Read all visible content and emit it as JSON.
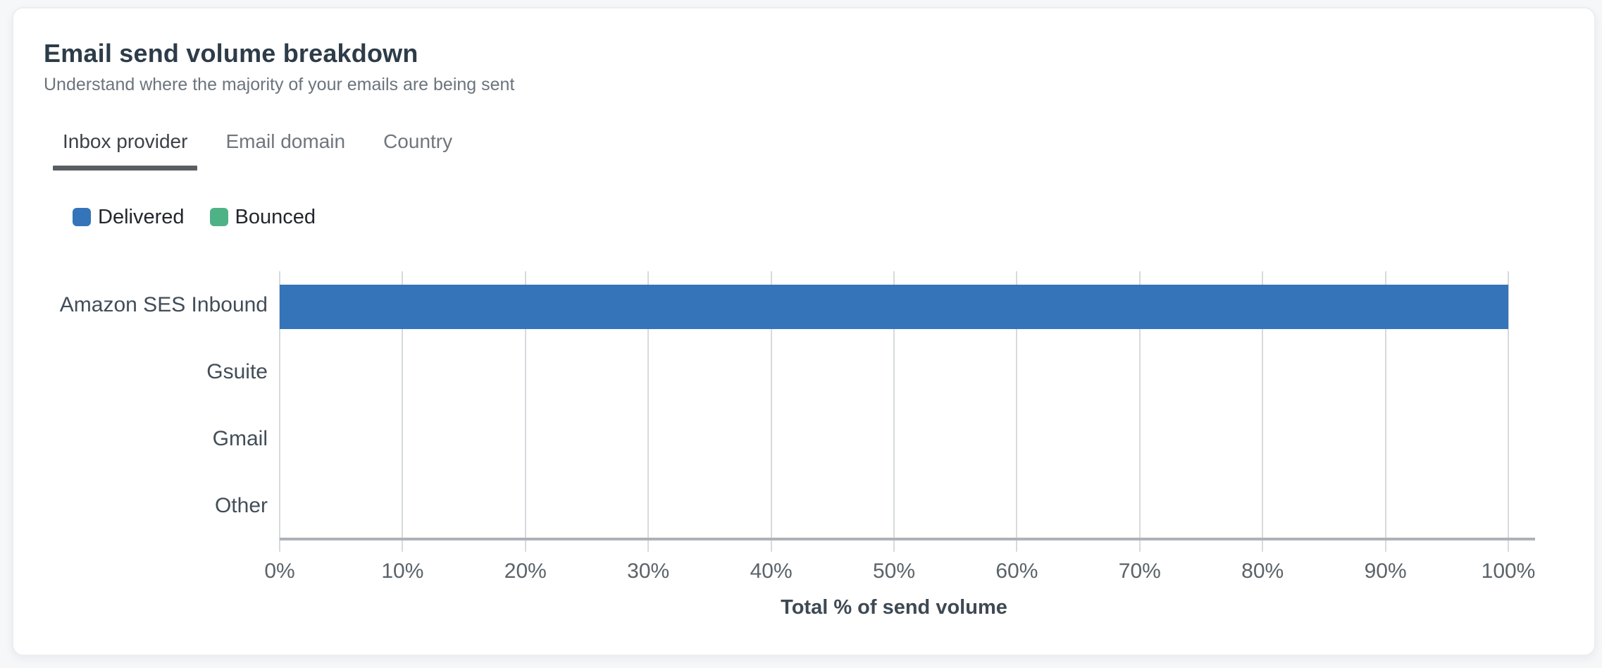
{
  "card": {
    "title": "Email send volume breakdown",
    "subtitle": "Understand where the majority of your emails are being sent"
  },
  "tabs": [
    {
      "label": "Inbox provider",
      "active": true
    },
    {
      "label": "Email domain",
      "active": false
    },
    {
      "label": "Country",
      "active": false
    }
  ],
  "legend": [
    {
      "label": "Delivered",
      "color": "#3574b9"
    },
    {
      "label": "Bounced",
      "color": "#4fb286"
    }
  ],
  "chart_data": {
    "type": "bar",
    "orientation": "horizontal",
    "title": "Email send volume breakdown",
    "categories": [
      "Amazon SES Inbound",
      "Gsuite",
      "Gmail",
      "Other"
    ],
    "series": [
      {
        "name": "Delivered",
        "color": "#3574b9",
        "values": [
          100,
          0,
          0,
          0
        ]
      },
      {
        "name": "Bounced",
        "color": "#4fb286",
        "values": [
          0,
          0,
          0,
          0
        ]
      }
    ],
    "xlabel": "Total % of send volume",
    "ylabel": "",
    "x_ticks": [
      "0%",
      "10%",
      "20%",
      "30%",
      "40%",
      "50%",
      "60%",
      "70%",
      "80%",
      "90%",
      "100%"
    ],
    "xlim": [
      0,
      100
    ],
    "grid": true,
    "legend_position": "top-left"
  },
  "colors": {
    "page_background": "#f6f7f9",
    "card_background": "#ffffff",
    "delivered_blue": "#3574b9",
    "bounced_green": "#4fb286",
    "active_tab_underline": "#5a5e62",
    "gridline": "#d7dadd",
    "axis_line": "#acb2b8"
  }
}
